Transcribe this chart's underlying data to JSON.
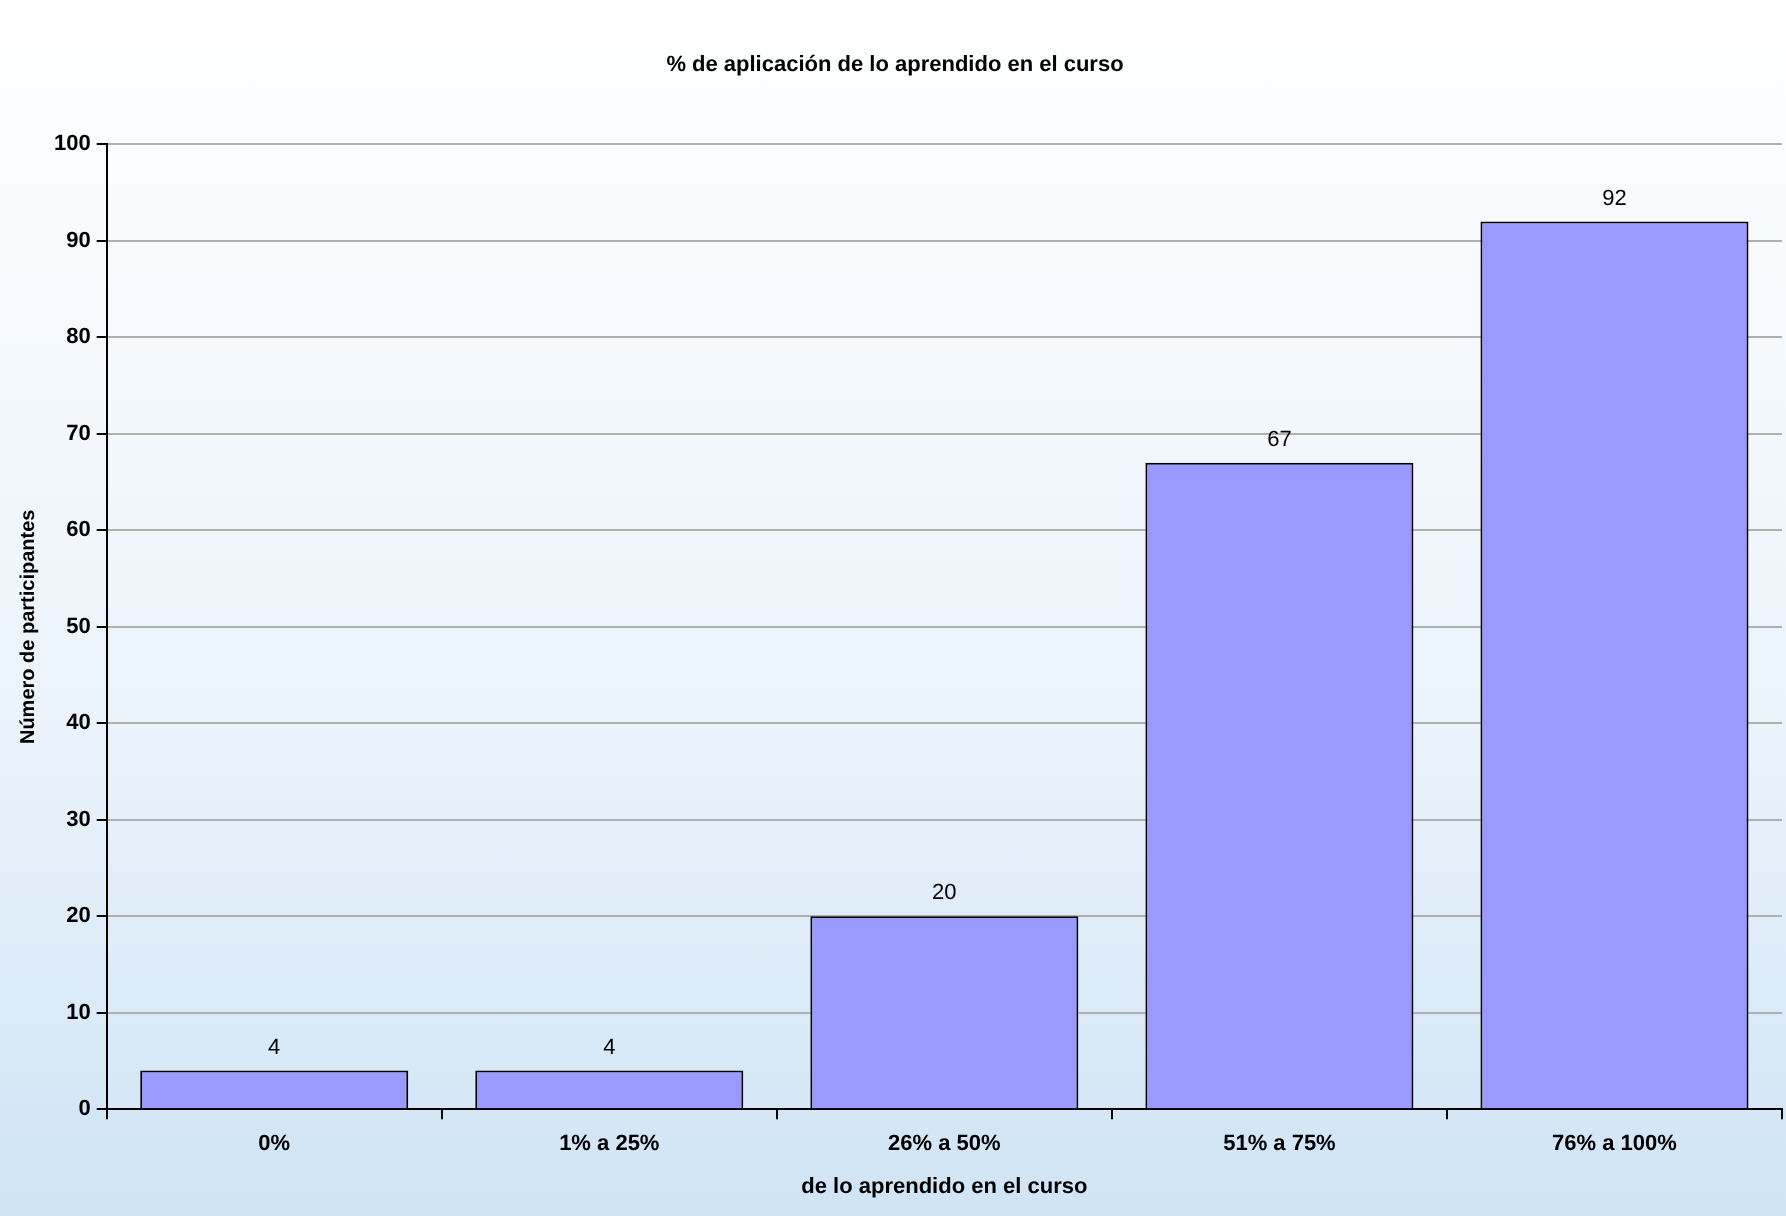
{
  "chart_data": {
    "type": "bar",
    "title": "% de aplicación de lo aprendido en el curso",
    "xlabel": "de lo aprendido en el curso",
    "ylabel": "Número de participantes",
    "categories": [
      "0%",
      "1% a 25%",
      "26% a 50%",
      "51% a 75%",
      "76% a 100%"
    ],
    "values": [
      4,
      4,
      20,
      67,
      92
    ],
    "color": "#9999ff",
    "ylim": [
      0,
      100
    ],
    "yticks": [
      0,
      10,
      20,
      30,
      40,
      50,
      60,
      70,
      80,
      90,
      100
    ],
    "grid": "y",
    "data_labels": true,
    "legend": false
  }
}
